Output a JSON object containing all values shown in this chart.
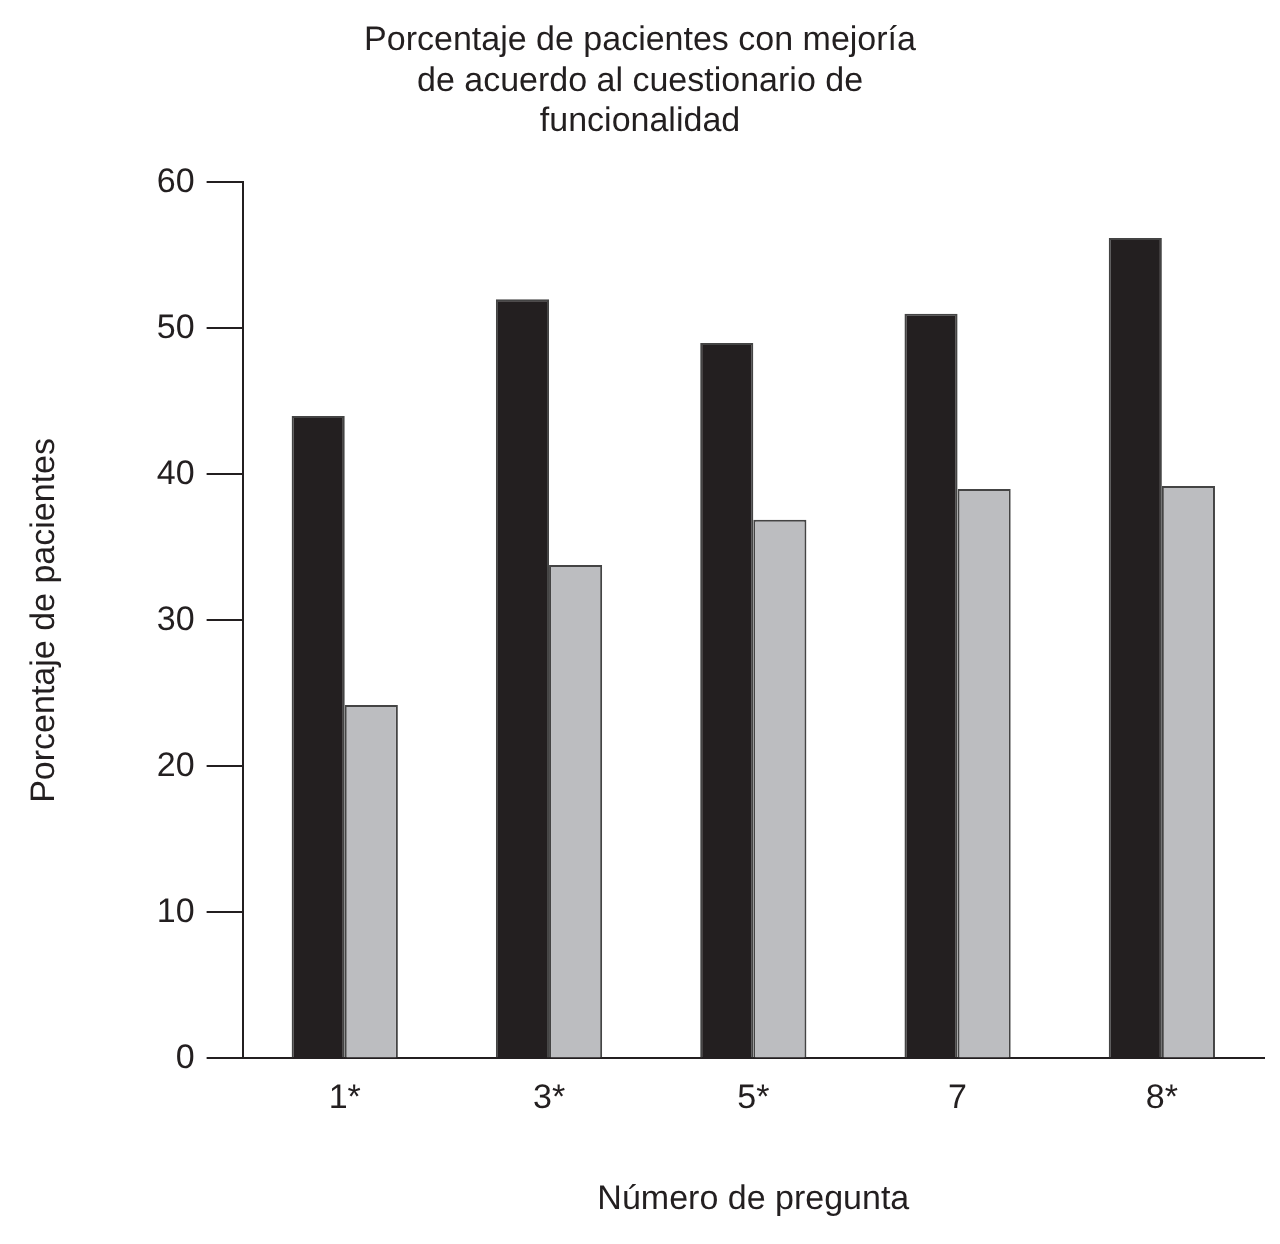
{
  "chart_data": {
    "type": "bar",
    "title": "Porcentaje de pacientes con mejoría\nde acuerdo al cuestionario de\nfuncionalidad",
    "xlabel": "Número de pregunta",
    "ylabel": "Porcentaje de pacientes",
    "categories": [
      "1*",
      "3*",
      "5*",
      "7",
      "8*"
    ],
    "series": [
      {
        "color": "#231f20",
        "values": [
          44,
          52,
          49,
          51,
          56.2
        ]
      },
      {
        "color": "#bcbdc0",
        "values": [
          24.2,
          33.8,
          36.9,
          39,
          39.2
        ]
      }
    ],
    "ylim": [
      0,
      60
    ],
    "yticks": [
      0,
      10,
      20,
      30,
      40,
      50,
      60
    ],
    "grid": false,
    "legend": false
  }
}
